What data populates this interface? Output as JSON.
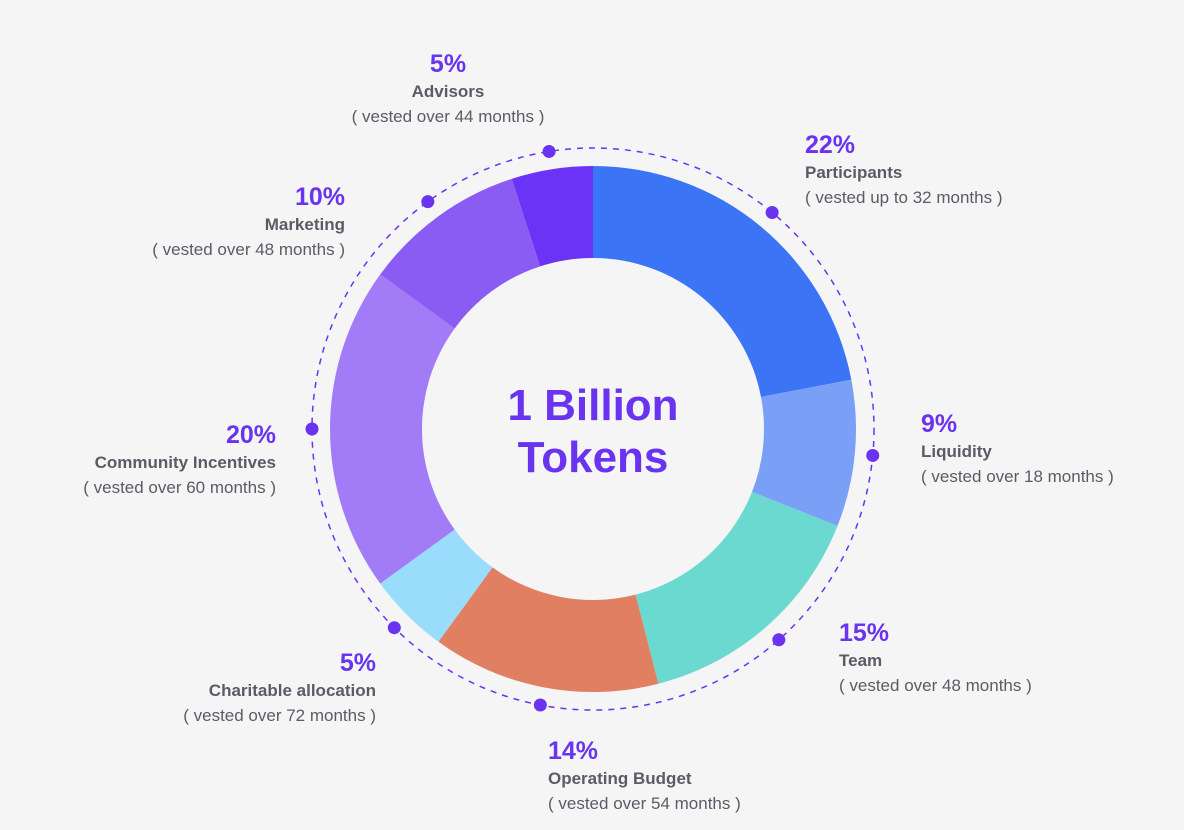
{
  "center": {
    "line1": "1 Billion",
    "line2": "Tokens"
  },
  "chart_data": {
    "type": "pie",
    "donut": true,
    "slices": [
      {
        "name": "Participants",
        "value": 22,
        "pct": "22%",
        "note": "( vested up to 32 months )",
        "color": "#3b74f5"
      },
      {
        "name": "Liquidity",
        "value": 9,
        "pct": "9%",
        "note": "( vested over 18 months )",
        "color": "#7a9ff7"
      },
      {
        "name": "Team",
        "value": 15,
        "pct": "15%",
        "note": "( vested over 48 months )",
        "color": "#6cd9d0"
      },
      {
        "name": "Operating Budget",
        "value": 14,
        "pct": "14%",
        "note": "( vested over 54 months )",
        "color": "#e07f61"
      },
      {
        "name": "Charitable allocation",
        "value": 5,
        "pct": "5%",
        "note": "( vested over 72 months )",
        "color": "#9adcfb"
      },
      {
        "name": "Community Incentives",
        "value": 20,
        "pct": "20%",
        "note": "( vested over 60 months )",
        "color": "#a17cf6"
      },
      {
        "name": "Marketing",
        "value": 10,
        "pct": "10%",
        "note": "( vested over 48 months )",
        "color": "#8a5cf3"
      },
      {
        "name": "Advisors",
        "value": 5,
        "pct": "5%",
        "note": "( vested over 44 months )",
        "color": "#6a33f5"
      }
    ]
  }
}
